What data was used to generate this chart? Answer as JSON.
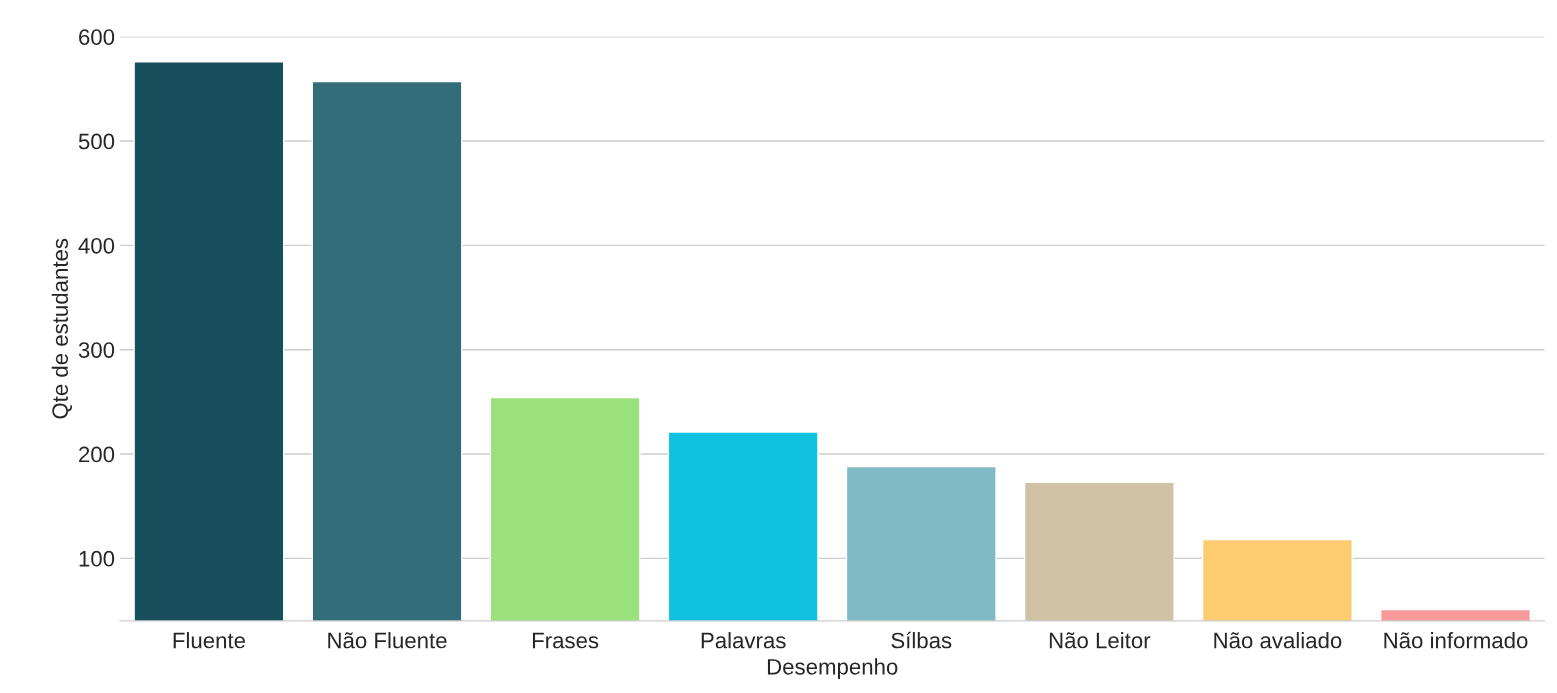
{
  "chart_data": {
    "type": "bar",
    "xlabel": "Desempenho",
    "ylabel": "Qte de estudantes",
    "categories": [
      "Fluente",
      "Não Fluente",
      "Frases",
      "Palavras",
      "Sílbas",
      "Não Leitor",
      "Não avaliado",
      "Não informado"
    ],
    "values": [
      576,
      557,
      254,
      221,
      188,
      173,
      118,
      51
    ],
    "colors": [
      "#174f5c",
      "#336d79",
      "#9be27c",
      "#10c1e0",
      "#80bac4",
      "#d0c1a6",
      "#fdcb70",
      "#f99a9a"
    ],
    "ylim": [
      40,
      600
    ],
    "yticks": [
      100,
      200,
      300,
      400,
      500,
      600
    ],
    "grid": "y",
    "legend": false
  }
}
